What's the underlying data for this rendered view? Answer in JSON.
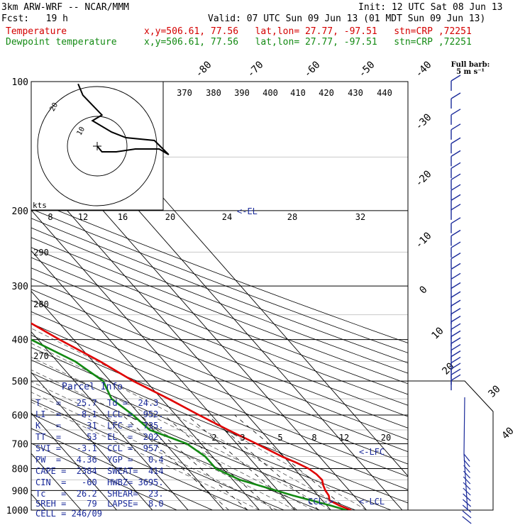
{
  "header": {
    "line1_left": "3km ARW-WRF -- NCAR/MMM",
    "line1_right": "Init: 12 UTC Sat 08 Jun 13",
    "line2_left": "Fcst:   19 h",
    "line2_right": "Valid: 07 UTC Sun 09 Jun 13 (01 MDT Sun 09 Jun 13)",
    "temp_label": "Temperature",
    "temp_info": "x,y=506.61, 77.56   lat,lon= 27.77, -97.51   stn=CRP ,72251",
    "dew_label": "Dewpoint temperature",
    "dew_info": "x,y=506.61, 77.56   lat,lon= 27.77, -97.51   stn=CRP ,72251"
  },
  "colors": {
    "temperature": "#e00000",
    "dewpoint": "#138a13",
    "parcel": "#1a2a9a",
    "grid": "#000000"
  },
  "chart_data": {
    "type": "skew-t log-p sounding",
    "pressure_axis": {
      "levels": [
        100,
        200,
        300,
        400,
        500,
        600,
        700,
        800,
        900,
        1000
      ],
      "scale": "log",
      "ylim": [
        1000,
        100
      ]
    },
    "isotherm_labels_top": [
      "-80",
      "-70",
      "-60",
      "-50",
      "-40"
    ],
    "isotherm_labels_right": [
      "-30",
      "-20",
      "-10",
      "0",
      "10",
      "20",
      "30",
      "40"
    ],
    "theta_labels": [
      "370",
      "380",
      "390",
      "400",
      "410",
      "420",
      "430",
      "440"
    ],
    "theta_labels_left": [
      "290",
      "280",
      "270"
    ],
    "mixing_ratio_labels": [
      "2",
      "3",
      "5",
      "8",
      "12",
      "20"
    ],
    "wind_barb_label": "Full barb:\n5 m s⁻¹",
    "hodograph": {
      "units_label": "kts",
      "ring_labels": [
        "10",
        "20"
      ],
      "speed_ticks": [
        "8",
        "12",
        "16",
        "20",
        "24",
        "28",
        "32"
      ],
      "track_uv": [
        [
          0,
          0
        ],
        [
          1,
          -2
        ],
        [
          4,
          -2
        ],
        [
          8,
          -1
        ],
        [
          13,
          -1
        ],
        [
          15,
          -3
        ],
        [
          12,
          2
        ],
        [
          6,
          3
        ],
        [
          3,
          5
        ],
        [
          -1,
          9
        ],
        [
          1,
          11
        ],
        [
          -3,
          18
        ],
        [
          -4,
          22
        ]
      ]
    },
    "series": [
      {
        "name": "Temperature",
        "points": [
          [
            1000,
            25.7
          ],
          [
            975,
            23.5
          ],
          [
            950,
            22
          ],
          [
            925,
            23
          ],
          [
            900,
            23.3
          ],
          [
            875,
            24
          ],
          [
            850,
            25
          ],
          [
            825,
            24.8
          ],
          [
            800,
            24
          ],
          [
            775,
            22
          ],
          [
            750,
            19.5
          ],
          [
            700,
            15.5
          ],
          [
            650,
            11
          ],
          [
            600,
            6.5
          ],
          [
            550,
            2
          ],
          [
            500,
            -3.5
          ],
          [
            450,
            -8
          ],
          [
            400,
            -14
          ],
          [
            350,
            -20
          ],
          [
            300,
            -27.5
          ],
          [
            250,
            -37
          ],
          [
            225,
            -42.5
          ],
          [
            200,
            -48.5
          ],
          [
            175,
            -54.5
          ],
          [
            150,
            -61.5
          ],
          [
            125,
            -67
          ],
          [
            100,
            -72.5
          ]
        ]
      },
      {
        "name": "Dewpoint temperature",
        "points": [
          [
            1000,
            24.3
          ],
          [
            975,
            21
          ],
          [
            950,
            17
          ],
          [
            925,
            13
          ],
          [
            900,
            9.5
          ],
          [
            850,
            2
          ],
          [
            800,
            -2
          ],
          [
            750,
            -2
          ],
          [
            700,
            -4
          ],
          [
            650,
            -11
          ],
          [
            600,
            -12
          ],
          [
            550,
            -14
          ],
          [
            500,
            -12
          ],
          [
            450,
            -15
          ],
          [
            400,
            -22
          ],
          [
            380,
            -22
          ],
          [
            350,
            -25.5
          ],
          [
            300,
            -41
          ],
          [
            260,
            -64
          ],
          [
            230,
            -58
          ],
          [
            200,
            -60
          ],
          [
            175,
            -68
          ],
          [
            150,
            -78
          ],
          [
            125,
            -84
          ],
          [
            100,
            -92
          ]
        ]
      }
    ],
    "annotations": [
      "<-EL",
      "<-LFC",
      "<-LCL",
      "CCL->"
    ],
    "wind_profile_pressures": [
      100,
      110,
      120,
      130,
      140,
      150,
      160,
      170,
      180,
      190,
      200,
      215,
      230,
      245,
      260,
      275,
      290,
      305,
      320,
      335,
      350,
      365,
      380,
      395,
      410,
      425,
      440,
      455,
      470,
      485,
      500
    ]
  },
  "parcel_info": {
    "title": "Parcel Info",
    "rows": [
      "T   =   25.7  Td =  24.3",
      "LI  =   -8.1  LCL =  952.",
      "K   =     31  LFC =  735.",
      "TT  =     53  EL  =  202.",
      "SVI =   -3.1  CCL =  957.",
      "PW  =   4.36  YGP =   0.4",
      "CAPE =  2384  SWEAT=  414",
      "CIN  =   -60  HWBZ= 3695.",
      "Tc   =  26.2  SHEAR=  23.",
      "SREH =    79  LAPSE=  8.0",
      "CELL = 246/09"
    ]
  }
}
